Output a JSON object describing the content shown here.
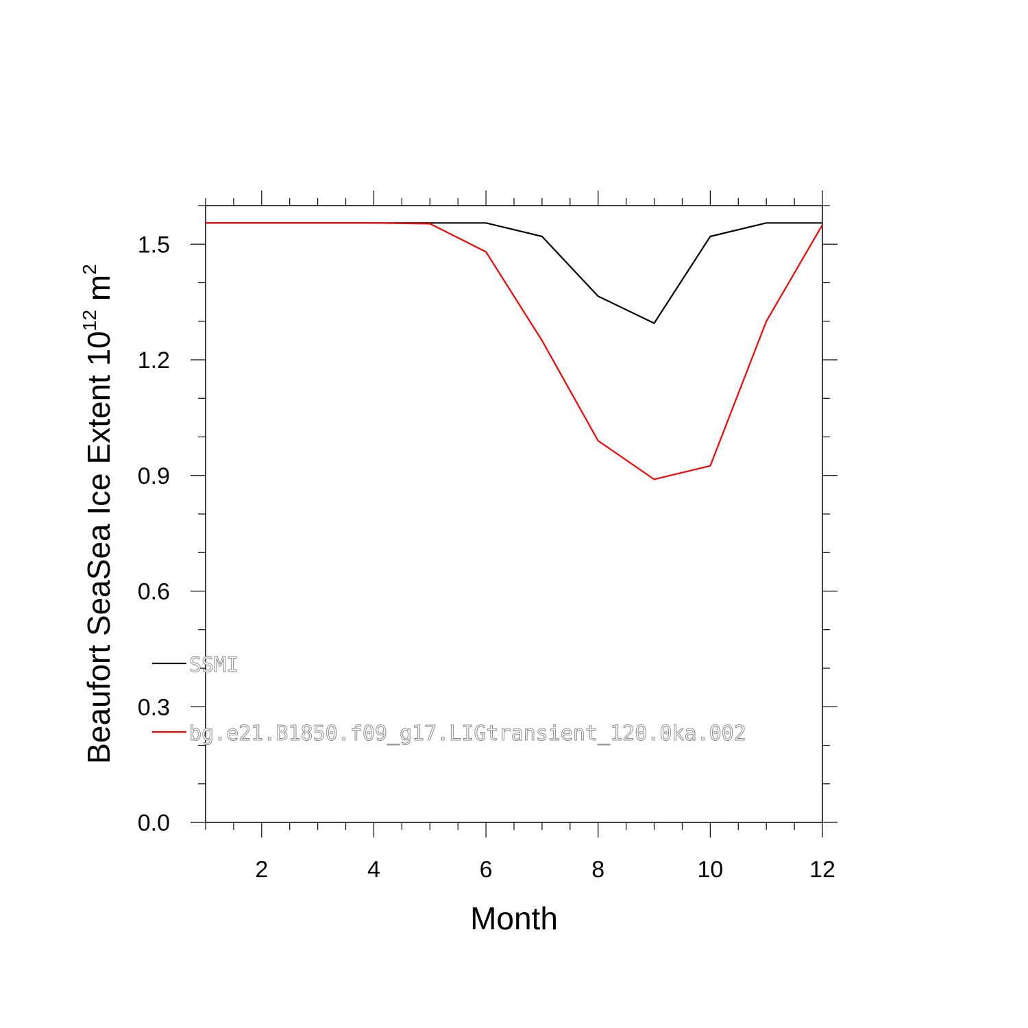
{
  "chart_data": {
    "type": "line",
    "title": "",
    "xlabel": "Month",
    "ylabel": {
      "prefix": "Beaufort SeaSea Ice Extent 10",
      "exponent": "12",
      "unit": " m",
      "unit_exponent": "2"
    },
    "xlim": [
      1,
      12
    ],
    "ylim": [
      0,
      1.6
    ],
    "x_ticks": [
      2,
      4,
      6,
      8,
      10,
      12
    ],
    "x_tick_labels": [
      "2",
      "4",
      "6",
      "8",
      "10",
      "12"
    ],
    "y_ticks": [
      0.0,
      0.3,
      0.6,
      0.9,
      1.2,
      1.5
    ],
    "y_tick_labels": [
      "0.0",
      "0.3",
      "0.6",
      "0.9",
      "1.2",
      "1.5"
    ],
    "grid": false,
    "legend_placement": "lower-left inside",
    "x": [
      1,
      2,
      3,
      4,
      5,
      6,
      7,
      8,
      9,
      10,
      11,
      12
    ],
    "series": [
      {
        "name": "SSMI",
        "color": "#000000",
        "values": [
          1.555,
          1.555,
          1.555,
          1.555,
          1.555,
          1.555,
          1.52,
          1.365,
          1.295,
          1.52,
          1.555,
          1.555
        ]
      },
      {
        "name": "bg.e21.B1850.f09_g17.LIGtransient_120.0ka.002",
        "color": "#ff0000",
        "values": [
          1.555,
          1.555,
          1.555,
          1.555,
          1.553,
          1.48,
          1.25,
          0.99,
          0.89,
          0.925,
          1.3,
          1.55
        ]
      }
    ]
  }
}
